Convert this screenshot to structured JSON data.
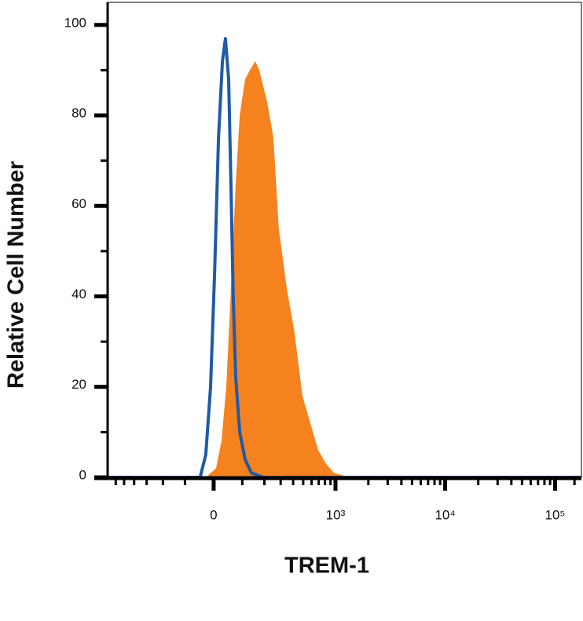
{
  "chart_data": {
    "type": "histogram-overlay",
    "x_label": "TREM-1",
    "y_label": "Relative Cell Number",
    "xscale": "biexponential",
    "xlim": [
      -714,
      173500
    ],
    "ylim": [
      0,
      105
    ],
    "xticks": [
      0,
      {
        "value": 1000,
        "label": "10³"
      },
      {
        "value": 10000,
        "label": "10⁴"
      },
      {
        "value": 100000,
        "label": "10⁵"
      }
    ],
    "xminorticks": [
      -600,
      -500,
      -400,
      -300,
      -200,
      -100,
      100,
      200,
      300,
      400,
      500,
      600,
      700,
      800,
      900,
      2000,
      3000,
      4000,
      5000,
      6000,
      7000,
      8000,
      9000,
      20000,
      30000,
      40000,
      50000,
      60000,
      70000,
      80000,
      90000,
      150000
    ],
    "yticks": [
      0,
      20,
      40,
      60,
      80,
      100
    ],
    "yminorticks": [
      10,
      30,
      50,
      70,
      90
    ],
    "series": [
      {
        "color": "#f5821f",
        "fill": true,
        "x": [
          -26,
          8,
          26,
          42,
          53,
          64,
          75,
          90,
          111,
          131,
          155,
          174,
          215,
          252,
          287,
          345,
          412,
          491,
          583,
          691,
          817,
          966,
          1347
        ],
        "values": [
          0,
          2,
          8,
          20,
          35,
          50,
          65,
          80,
          88,
          90,
          92,
          90,
          83,
          75,
          55,
          42,
          32,
          18,
          12,
          6,
          3,
          1,
          0
        ]
      },
      {
        "color": "#1f5aa6",
        "fill": false,
        "x": [
          -700,
          -45,
          -26,
          -10,
          3,
          16,
          29,
          39,
          50,
          58,
          66,
          75,
          90,
          111,
          137,
          194,
          170000
        ],
        "values": [
          0,
          0,
          5,
          20,
          45,
          75,
          92,
          97,
          88,
          65,
          40,
          22,
          10,
          4,
          1,
          0,
          0
        ]
      }
    ]
  }
}
